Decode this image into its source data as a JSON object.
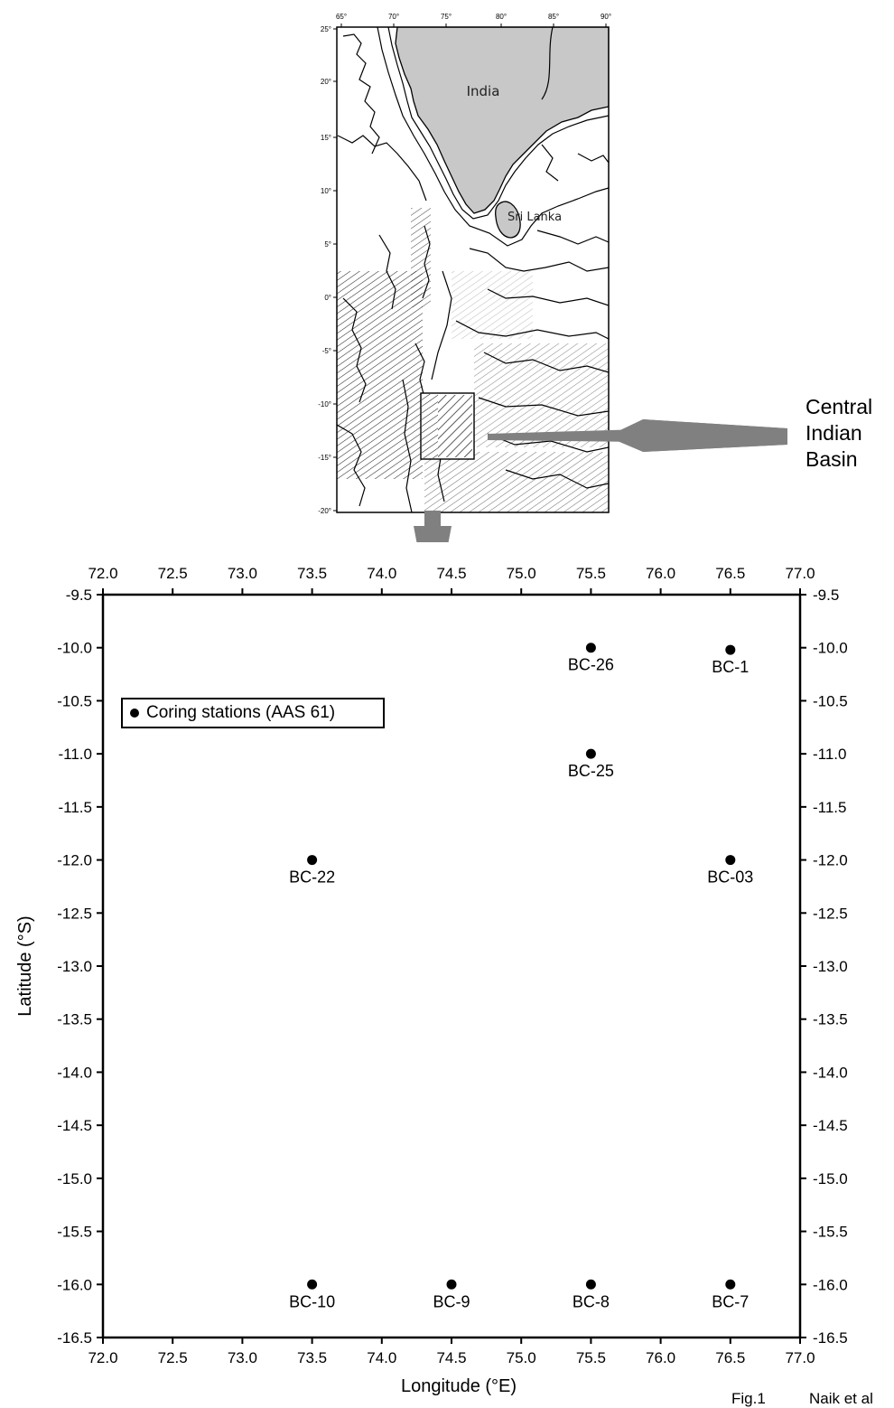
{
  "inset_map": {
    "lon_ticks": [
      "65°",
      "70°",
      "75°",
      "80°",
      "85°",
      "90°"
    ],
    "lat_ticks": [
      "25°",
      "20°",
      "15°",
      "10°",
      "5°",
      "0°",
      "-5°",
      "-10°",
      "-15°",
      "-20°"
    ],
    "labels": {
      "india": "India",
      "sri_lanka": "Sri Lanka"
    },
    "colors": {
      "land": "#c8c8c8",
      "sea": "#ffffff",
      "contour": "#000000"
    }
  },
  "callout": {
    "lines": [
      "Central",
      "Indian",
      "Basin"
    ],
    "arrow_color": "#808080"
  },
  "station_map": {
    "xlabel": "Longitude (°E)",
    "ylabel": "Latitude (°S)",
    "x_ticks": [
      "72.0",
      "72.5",
      "73.0",
      "73.5",
      "74.0",
      "74.5",
      "75.0",
      "75.5",
      "76.0",
      "76.5",
      "77.0"
    ],
    "y_ticks": [
      "-9.5",
      "-10.0",
      "-10.5",
      "-11.0",
      "-11.5",
      "-12.0",
      "-12.5",
      "-13.0",
      "-13.5",
      "-14.0",
      "-14.5",
      "-15.0",
      "-15.5",
      "-16.0",
      "-16.5"
    ],
    "legend": "Coring stations (AAS 61)"
  },
  "chart_data": {
    "type": "scatter",
    "xlim": [
      72.0,
      77.0
    ],
    "ylim": [
      -16.5,
      -9.5
    ],
    "series": [
      {
        "name": "Coring stations (AAS 61)",
        "points": [
          {
            "label": "BC-26",
            "x": 75.5,
            "y": -10.0
          },
          {
            "label": "BC-1",
            "x": 76.5,
            "y": -10.02
          },
          {
            "label": "BC-25",
            "x": 75.5,
            "y": -11.0
          },
          {
            "label": "BC-22",
            "x": 73.5,
            "y": -12.0
          },
          {
            "label": "BC-03",
            "x": 76.5,
            "y": -12.0
          },
          {
            "label": "BC-10",
            "x": 73.5,
            "y": -16.0
          },
          {
            "label": "BC-9",
            "x": 74.5,
            "y": -16.0
          },
          {
            "label": "BC-8",
            "x": 75.5,
            "y": -16.0
          },
          {
            "label": "BC-7",
            "x": 76.5,
            "y": -16.0
          }
        ]
      }
    ]
  },
  "footer": {
    "fig": "Fig.1",
    "author": "Naik et al"
  }
}
